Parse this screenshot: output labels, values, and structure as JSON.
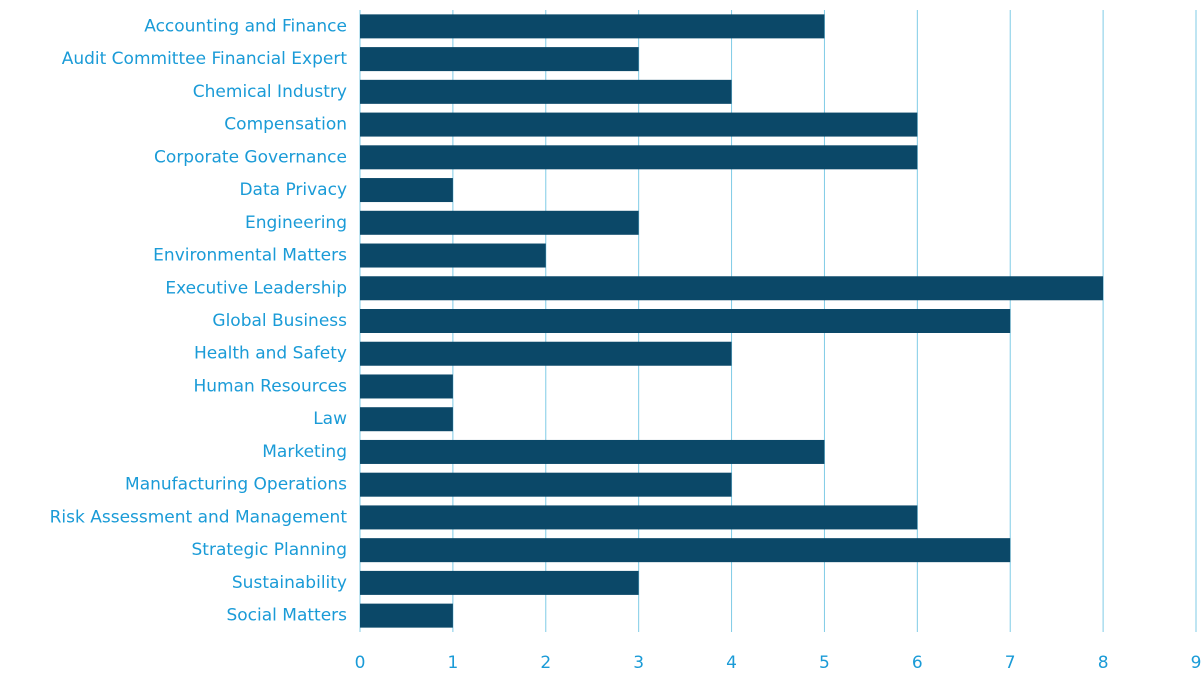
{
  "chart_data": {
    "type": "bar",
    "orientation": "horizontal",
    "categories": [
      "Accounting and Finance",
      "Audit Committee Financial Expert",
      "Chemical Industry",
      "Compensation",
      "Corporate Governance",
      "Data Privacy",
      "Engineering",
      "Environmental Matters",
      "Executive Leadership",
      "Global Business",
      "Health and Safety",
      "Human Resources",
      "Law",
      "Marketing",
      "Manufacturing Operations",
      "Risk Assessment and Management",
      "Strategic Planning",
      "Sustainability",
      "Social Matters"
    ],
    "values": [
      5,
      3,
      4,
      6,
      6,
      1,
      3,
      2,
      8,
      7,
      4,
      1,
      1,
      5,
      4,
      6,
      7,
      3,
      1
    ],
    "color": "#0b4868",
    "grid_color": "#7fcbe6",
    "xlim": [
      0,
      9
    ],
    "xticks": [
      0,
      1,
      2,
      3,
      4,
      5,
      6,
      7,
      8,
      9
    ],
    "grid": true
  }
}
